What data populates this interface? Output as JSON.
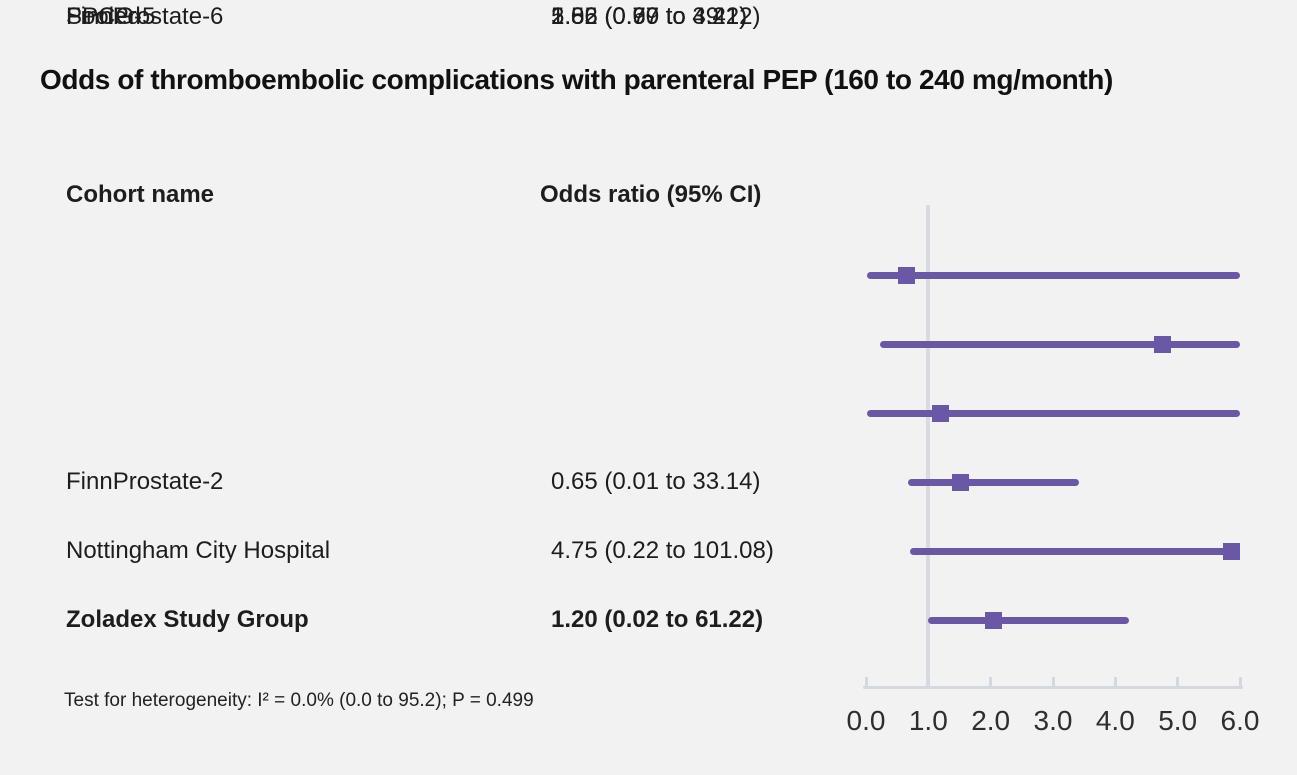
{
  "chart_data": {
    "type": "scatter",
    "subtype": "forest-plot",
    "title": "Odds of thromboembolic complications with parenteral PEP (160 to 240 mg/month)",
    "columns": [
      "Cohort name",
      "Odds ratio (95% CI)"
    ],
    "rows": [
      {
        "cohort": "FinnProstate-2",
        "or": 0.65,
        "ci_low": 0.01,
        "ci_high": 33.14,
        "or_label": "0.65 (0.01 to 33.14)",
        "pooled": false
      },
      {
        "cohort": "Nottingham City Hospital",
        "or": 4.75,
        "ci_low": 0.22,
        "ci_high": 101.08,
        "or_label": "4.75 (0.22 to 101.08)",
        "pooled": false
      },
      {
        "cohort": "Zoladex Study Group",
        "or": 1.2,
        "ci_low": 0.02,
        "ci_high": 61.22,
        "or_label": "1.20 (0.02 to 61.22)",
        "pooled": false
      },
      {
        "cohort": "SPCG-5",
        "or": 1.52,
        "ci_low": 0.67,
        "ci_high": 3.41,
        "or_label": "1.52 (0.67 to 3.41)",
        "pooled": false
      },
      {
        "cohort": "FinnProstate-6",
        "or": 5.86,
        "ci_low": 0.7,
        "ci_high": 49.12,
        "or_label": "5.86 (0.70 to 49.12)",
        "pooled": false
      },
      {
        "cohort": "Pooled",
        "or": 2.05,
        "ci_low": 0.99,
        "ci_high": 4.22,
        "or_label": "2.05 (0.99 to 4.22)",
        "pooled": true
      }
    ],
    "xaxis": {
      "min": 0.0,
      "max": 6.0,
      "tick_labels": [
        "0.0",
        "1.0",
        "2.0",
        "3.0",
        "4.0",
        "5.0",
        "6.0"
      ],
      "reference_line": 1.0
    },
    "footnote": "Test for heterogeneity: I² = 0.0% (0.0 to 95.2); P = 0.499",
    "colors": {
      "marker": "#6a58a6",
      "ci_line": "#6a58a6",
      "reference_line": "#d8dbe2",
      "axis": "#d4d8df",
      "background": "#f2f2f2",
      "text": "#1d1d1d"
    }
  }
}
